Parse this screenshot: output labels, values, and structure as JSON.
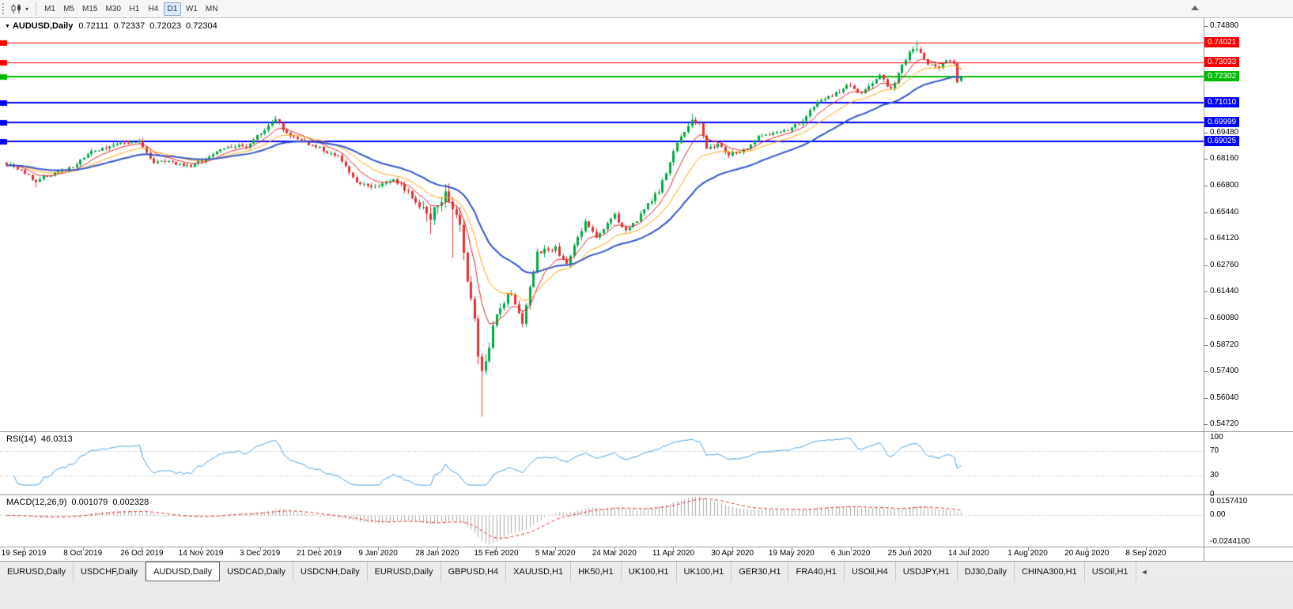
{
  "toolbar": {
    "timeframes": [
      "M1",
      "M5",
      "M15",
      "M30",
      "H1",
      "H4",
      "D1",
      "W1",
      "MN"
    ],
    "active_timeframe": "D1"
  },
  "icons": {
    "chart_type_caret": "▾",
    "chart_context_triangle": "▼",
    "tab_scroll_left": "◄"
  },
  "chart_header": {
    "symbol": "AUDUSD,Daily",
    "open": "0.72111",
    "high": "0.72337",
    "low": "0.72023",
    "close": "0.72304"
  },
  "indicators": {
    "rsi_name": "RSI(14)",
    "rsi_value": "46.0313",
    "macd_name": "MACD(12,26,9)",
    "macd_main": "0.001079",
    "macd_signal": "0.002328"
  },
  "price_scale": {
    "labels": [
      {
        "text": "0.74880",
        "price": 0.7488
      },
      {
        "text": "0.69480",
        "price": 0.6948
      },
      {
        "text": "0.68160",
        "price": 0.6816
      },
      {
        "text": "0.66800",
        "price": 0.668
      },
      {
        "text": "0.65440",
        "price": 0.6544
      },
      {
        "text": "0.64120",
        "price": 0.6412
      },
      {
        "text": "0.62760",
        "price": 0.6276
      },
      {
        "text": "0.61440",
        "price": 0.6144
      },
      {
        "text": "0.60080",
        "price": 0.6008
      },
      {
        "text": "0.58720",
        "price": 0.5872
      },
      {
        "text": "0.57400",
        "price": 0.574
      },
      {
        "text": "0.56040",
        "price": 0.5604
      },
      {
        "text": "0.54720",
        "price": 0.5472
      }
    ],
    "line_tags": [
      {
        "text": "0.74021",
        "price": 0.74021,
        "color": "#FF0000"
      },
      {
        "text": "0.73033",
        "price": 0.73033,
        "color": "#FF0000"
      },
      {
        "text": "0.72302",
        "price": 0.72302,
        "color": "#00BA00"
      },
      {
        "text": "0.71010",
        "price": 0.7101,
        "color": "#0000FF"
      },
      {
        "text": "0.69999",
        "price": 0.69999,
        "color": "#0000FF"
      },
      {
        "text": "0.69025",
        "price": 0.69025,
        "color": "#0000FF"
      }
    ]
  },
  "rsi_scale": {
    "labels": [
      {
        "text": "100",
        "value": 100
      },
      {
        "text": "70",
        "value": 70
      },
      {
        "text": "30",
        "value": 30
      },
      {
        "text": "0",
        "value": 0
      }
    ],
    "levels": [
      70,
      30
    ]
  },
  "macd_scale": {
    "labels": [
      {
        "text": "0.0157410",
        "value": 0.015741
      },
      {
        "text": "0.00",
        "value": 0
      },
      {
        "text": "-0.0244100",
        "value": -0.02441
      }
    ],
    "max": 0.015741,
    "min": -0.02441
  },
  "date_axis": {
    "labels": [
      "19 Sep 2019",
      "8 Oct 2019",
      "26 Oct 2019",
      "14 Nov 2019",
      "3 Dec 2019",
      "21 Dec 2019",
      "9 Jan 2020",
      "28 Jan 2020",
      "15 Feb 2020",
      "5 Mar 2020",
      "24 Mar 2020",
      "11 Apr 2020",
      "30 Apr 2020",
      "19 May 2020",
      "6 Jun 2020",
      "25 Jun 2020",
      "14 Jul 2020",
      "1 Aug 2020",
      "20 Aug 2020",
      "8 Sep 2020"
    ]
  },
  "tab_bar": {
    "tabs": [
      "EURUSD,Daily",
      "USDCHF,Daily",
      "AUDUSD,Daily",
      "USDCAD,Daily",
      "USDCNH,Daily",
      "EURUSD,Daily",
      "GBPUSD,H4",
      "XAUUSD,H1",
      "HK50,H1",
      "UK100,H1",
      "UK100,H1",
      "GER30,H1",
      "FRA40,H1",
      "USOil,H4",
      "USDJPY,H1",
      "DJ30,Daily",
      "CHINA300,H1",
      "USOil,H1"
    ],
    "active_index": 2
  },
  "chart_data": {
    "type": "candlestick",
    "symbol": "AUDUSD",
    "timeframe": "Daily",
    "title": "AUDUSD,Daily",
    "bars": 260,
    "visible_price_range": [
      0.5472,
      0.7488
    ],
    "x_range_dates": [
      "19 Sep 2019",
      "18 Sep 2020"
    ],
    "close_anchors": [
      [
        0,
        0.679
      ],
      [
        4,
        0.6755
      ],
      [
        8,
        0.6705
      ],
      [
        13,
        0.6745
      ],
      [
        18,
        0.6775
      ],
      [
        23,
        0.685
      ],
      [
        28,
        0.688
      ],
      [
        33,
        0.6895
      ],
      [
        36,
        0.69
      ],
      [
        40,
        0.68
      ],
      [
        45,
        0.6795
      ],
      [
        50,
        0.6775
      ],
      [
        55,
        0.683
      ],
      [
        60,
        0.6875
      ],
      [
        65,
        0.688
      ],
      [
        70,
        0.6965
      ],
      [
        73,
        0.702
      ],
      [
        76,
        0.6945
      ],
      [
        80,
        0.6905
      ],
      [
        85,
        0.687
      ],
      [
        90,
        0.6825
      ],
      [
        95,
        0.6695
      ],
      [
        100,
        0.6675
      ],
      [
        105,
        0.6715
      ],
      [
        110,
        0.6625
      ],
      [
        113,
        0.6555
      ],
      [
        115,
        0.6515
      ],
      [
        117,
        0.6585
      ],
      [
        119,
        0.663
      ],
      [
        121,
        0.6585
      ],
      [
        123,
        0.65
      ],
      [
        125,
        0.6195
      ],
      [
        127,
        0.5995
      ],
      [
        128,
        0.58
      ],
      [
        129,
        0.5745
      ],
      [
        130,
        0.5805
      ],
      [
        132,
        0.596
      ],
      [
        134,
        0.607
      ],
      [
        137,
        0.614
      ],
      [
        140,
        0.5995
      ],
      [
        144,
        0.634
      ],
      [
        149,
        0.6365
      ],
      [
        152,
        0.6285
      ],
      [
        157,
        0.6495
      ],
      [
        160,
        0.6425
      ],
      [
        165,
        0.653
      ],
      [
        168,
        0.6445
      ],
      [
        172,
        0.653
      ],
      [
        177,
        0.6655
      ],
      [
        182,
        0.6895
      ],
      [
        186,
        0.701
      ],
      [
        188,
        0.6995
      ],
      [
        190,
        0.687
      ],
      [
        193,
        0.6885
      ],
      [
        196,
        0.6835
      ],
      [
        200,
        0.686
      ],
      [
        205,
        0.694
      ],
      [
        210,
        0.695
      ],
      [
        215,
        0.699
      ],
      [
        220,
        0.71
      ],
      [
        225,
        0.7145
      ],
      [
        228,
        0.719
      ],
      [
        232,
        0.7145
      ],
      [
        237,
        0.724
      ],
      [
        240,
        0.7165
      ],
      [
        245,
        0.7365
      ],
      [
        247,
        0.738
      ],
      [
        250,
        0.7285
      ],
      [
        253,
        0.7285
      ],
      [
        256,
        0.7315
      ],
      [
        257,
        0.73
      ],
      [
        258,
        0.7211
      ],
      [
        259,
        0.723
      ]
    ],
    "spikes": [
      {
        "bar": 8,
        "low": 0.6671
      },
      {
        "bar": 73,
        "high": 0.7032
      },
      {
        "bar": 115,
        "low": 0.6435
      },
      {
        "bar": 121,
        "low": 0.6315
      },
      {
        "bar": 129,
        "low": 0.551
      },
      {
        "bar": 186,
        "high": 0.7043
      },
      {
        "bar": 247,
        "high": 0.7414
      }
    ],
    "last_bar": {
      "open": 0.72111,
      "high": 0.72337,
      "low": 0.72023,
      "close": 0.72304
    },
    "volatility_regions": [
      [
        0,
        112,
        0.0016
      ],
      [
        113,
        131,
        0.0045
      ],
      [
        132,
        150,
        0.0028
      ],
      [
        151,
        181,
        0.002
      ],
      [
        182,
        259,
        0.0017
      ]
    ],
    "moving_averages": [
      {
        "period": 8,
        "color": "#E02020",
        "width": 1
      },
      {
        "period": 17,
        "color": "#FFA000",
        "width": 1
      },
      {
        "period": 34,
        "color": "#3355C8",
        "width": 2
      }
    ],
    "horizontal_lines": [
      {
        "price": 0.74021,
        "color": "#FF0000",
        "width": 1
      },
      {
        "price": 0.73033,
        "color": "#FF0000",
        "width": 1
      },
      {
        "price": 0.72302,
        "color": "#00BA00",
        "width": 2
      },
      {
        "price": 0.7101,
        "color": "#0000FF",
        "width": 2
      },
      {
        "price": 0.69999,
        "color": "#0000FF",
        "width": 2
      },
      {
        "price": 0.69025,
        "color": "#0000FF",
        "width": 2
      }
    ],
    "rsi": {
      "period": 14,
      "last_value": 46.0313,
      "levels": [
        70,
        30
      ],
      "range": [
        0,
        100
      ]
    },
    "macd": {
      "fast": 12,
      "slow": 26,
      "signal_period": 9,
      "last_main": 0.001079,
      "last_signal": 0.002328
    },
    "colors": {
      "up": "#00A843",
      "down": "#E03131",
      "rsi_line": "#4AA0E0",
      "macd_histogram": "#ABABAB",
      "macd_signal": "#E03131",
      "hline_red": "#FF0000",
      "hline_green": "#00BA00",
      "hline_blue": "#0000FF"
    }
  }
}
